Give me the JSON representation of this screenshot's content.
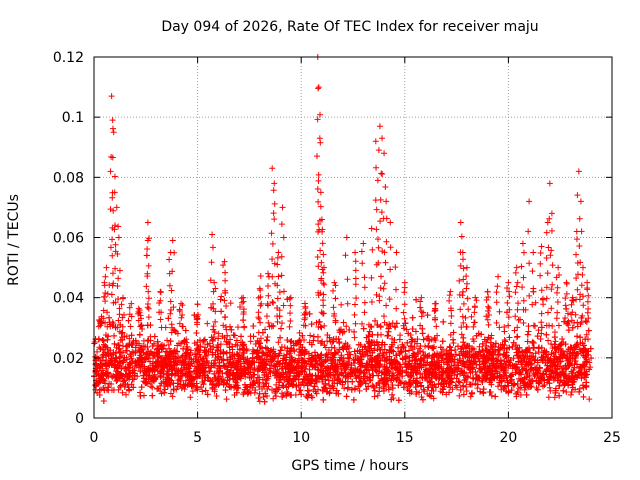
{
  "chart_data": {
    "type": "scatter",
    "title": "Day 094 of 2026, Rate Of TEC Index for receiver maju",
    "xlabel": "GPS time / hours",
    "ylabel": "ROTI / TECUs",
    "xlim": [
      0,
      25
    ],
    "ylim": [
      0,
      0.12
    ],
    "xticks": [
      "0",
      "5",
      "10",
      "15",
      "20",
      "25"
    ],
    "yticks": [
      "0",
      "0.02",
      "0.04",
      "0.06",
      "0.08",
      "0.1",
      "0.12"
    ],
    "grid": true,
    "marker": "+",
    "color": "#ff0000",
    "series": [
      {
        "name": "ROTI",
        "description": "dense scatter of ROTI samples from 0 to 24 h; bulk 0.005-0.03 TECU/s",
        "band": {
          "x": [
            0,
            24
          ],
          "y_low": 0.005,
          "y_high": 0.03
        },
        "spikes": [
          {
            "x": 0.3,
            "y": 0.032
          },
          {
            "x": 0.5,
            "y": 0.045
          },
          {
            "x": 0.6,
            "y": 0.05
          },
          {
            "x": 0.8,
            "y": 0.082
          },
          {
            "x": 0.85,
            "y": 0.107
          },
          {
            "x": 0.9,
            "y": 0.099
          },
          {
            "x": 0.95,
            "y": 0.095
          },
          {
            "x": 1.0,
            "y": 0.075
          },
          {
            "x": 1.1,
            "y": 0.07
          },
          {
            "x": 1.2,
            "y": 0.06
          },
          {
            "x": 1.4,
            "y": 0.04
          },
          {
            "x": 1.8,
            "y": 0.038
          },
          {
            "x": 2.2,
            "y": 0.035
          },
          {
            "x": 2.6,
            "y": 0.065
          },
          {
            "x": 2.6,
            "y": 0.059
          },
          {
            "x": 3.2,
            "y": 0.042
          },
          {
            "x": 3.7,
            "y": 0.055
          },
          {
            "x": 3.8,
            "y": 0.059
          },
          {
            "x": 4.2,
            "y": 0.038
          },
          {
            "x": 5.0,
            "y": 0.033
          },
          {
            "x": 5.7,
            "y": 0.061
          },
          {
            "x": 5.8,
            "y": 0.045
          },
          {
            "x": 6.3,
            "y": 0.052
          },
          {
            "x": 7.2,
            "y": 0.04
          },
          {
            "x": 8.0,
            "y": 0.043
          },
          {
            "x": 8.4,
            "y": 0.048
          },
          {
            "x": 8.6,
            "y": 0.083
          },
          {
            "x": 8.7,
            "y": 0.078
          },
          {
            "x": 8.9,
            "y": 0.055
          },
          {
            "x": 9.1,
            "y": 0.07
          },
          {
            "x": 9.5,
            "y": 0.04
          },
          {
            "x": 10.2,
            "y": 0.037
          },
          {
            "x": 10.8,
            "y": 0.12
          },
          {
            "x": 10.85,
            "y": 0.11
          },
          {
            "x": 10.9,
            "y": 0.093
          },
          {
            "x": 10.95,
            "y": 0.075
          },
          {
            "x": 11.0,
            "y": 0.066
          },
          {
            "x": 11.1,
            "y": 0.05
          },
          {
            "x": 11.6,
            "y": 0.045
          },
          {
            "x": 12.2,
            "y": 0.06
          },
          {
            "x": 12.6,
            "y": 0.055
          },
          {
            "x": 13.0,
            "y": 0.058
          },
          {
            "x": 13.4,
            "y": 0.063
          },
          {
            "x": 13.6,
            "y": 0.092
          },
          {
            "x": 13.7,
            "y": 0.079
          },
          {
            "x": 13.8,
            "y": 0.097
          },
          {
            "x": 13.9,
            "y": 0.093
          },
          {
            "x": 14.0,
            "y": 0.088
          },
          {
            "x": 14.1,
            "y": 0.072
          },
          {
            "x": 14.3,
            "y": 0.065
          },
          {
            "x": 14.6,
            "y": 0.055
          },
          {
            "x": 15.0,
            "y": 0.045
          },
          {
            "x": 15.8,
            "y": 0.04
          },
          {
            "x": 16.5,
            "y": 0.038
          },
          {
            "x": 17.2,
            "y": 0.042
          },
          {
            "x": 17.7,
            "y": 0.065
          },
          {
            "x": 17.8,
            "y": 0.055
          },
          {
            "x": 18.0,
            "y": 0.05
          },
          {
            "x": 18.4,
            "y": 0.04
          },
          {
            "x": 19.0,
            "y": 0.042
          },
          {
            "x": 19.5,
            "y": 0.047
          },
          {
            "x": 20.0,
            "y": 0.045
          },
          {
            "x": 20.4,
            "y": 0.05
          },
          {
            "x": 20.7,
            "y": 0.058
          },
          {
            "x": 21.0,
            "y": 0.072
          },
          {
            "x": 21.2,
            "y": 0.055
          },
          {
            "x": 21.6,
            "y": 0.057
          },
          {
            "x": 21.9,
            "y": 0.065
          },
          {
            "x": 22.0,
            "y": 0.078
          },
          {
            "x": 22.1,
            "y": 0.068
          },
          {
            "x": 22.4,
            "y": 0.05
          },
          {
            "x": 22.8,
            "y": 0.045
          },
          {
            "x": 23.1,
            "y": 0.04
          },
          {
            "x": 23.3,
            "y": 0.062
          },
          {
            "x": 23.4,
            "y": 0.082
          },
          {
            "x": 23.5,
            "y": 0.072
          },
          {
            "x": 23.6,
            "y": 0.05
          },
          {
            "x": 23.8,
            "y": 0.045
          }
        ]
      }
    ]
  }
}
